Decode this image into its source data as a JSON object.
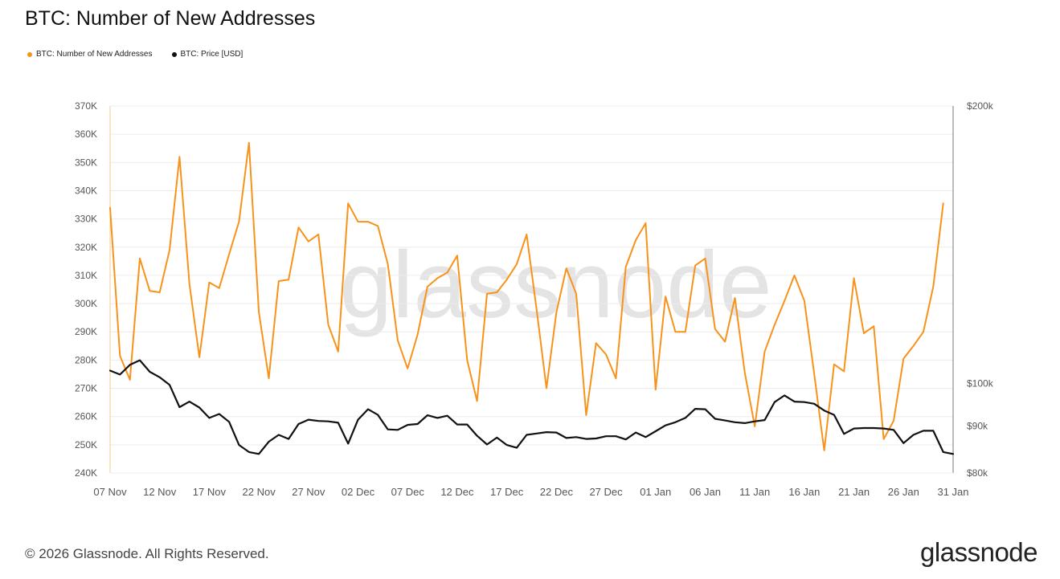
{
  "chart_data": {
    "type": "line",
    "title": "BTC: Number of New Addresses",
    "legend_placement": "top-left",
    "series": [
      {
        "name": "BTC: Number of New Addresses",
        "color": "#f7931a",
        "axis": "left",
        "values": [
          334000,
          281500,
          273000,
          316000,
          304500,
          304000,
          319000,
          352000,
          307000,
          281000,
          307500,
          305500,
          317500,
          329000,
          357000,
          297000,
          273500,
          308000,
          308500,
          327000,
          322000,
          324500,
          292500,
          283000,
          335500,
          329000,
          329000,
          327500,
          314000,
          287000,
          277000,
          289000,
          306000,
          309000,
          311000,
          317000,
          280000,
          265500,
          303500,
          304000,
          308500,
          314000,
          324500,
          298000,
          270000,
          297000,
          312500,
          303500,
          260500,
          286000,
          282000,
          273500,
          313000,
          322500,
          328500,
          269500,
          302500,
          290000,
          290000,
          313500,
          316000,
          291000,
          286500,
          302000,
          275500,
          256500,
          283000,
          292500,
          301000,
          310000,
          301000,
          275000,
          248000,
          278500,
          276000,
          309000,
          289500,
          292000,
          252000,
          258500,
          280500,
          285000,
          290000,
          306000,
          335500
        ]
      },
      {
        "name": "BTC: Price [USD]",
        "color": "#111111",
        "axis": "right",
        "values": [
          103300,
          102300,
          104800,
          106000,
          103000,
          101600,
          99700,
          94300,
          95600,
          94200,
          91800,
          92700,
          90900,
          85800,
          84300,
          83900,
          86500,
          88000,
          87100,
          90400,
          91400,
          91100,
          91000,
          90700,
          86100,
          91400,
          93800,
          92500,
          89200,
          89100,
          90200,
          90400,
          92400,
          91800,
          92300,
          90300,
          90300,
          87800,
          85900,
          87400,
          85800,
          85200,
          88000,
          88300,
          88600,
          88500,
          87300,
          87500,
          87100,
          87200,
          87700,
          87700,
          87000,
          88500,
          87500,
          88800,
          90100,
          90800,
          91800,
          93900,
          93800,
          91600,
          91200,
          90800,
          90600,
          91000,
          91300,
          95500,
          97100,
          95600,
          95500,
          95100,
          93500,
          92500,
          88200,
          89400,
          89500,
          89500,
          89400,
          89100,
          86200,
          88000,
          88900,
          88900,
          84300,
          83900
        ]
      }
    ],
    "x_tick_labels": [
      "07 Nov",
      "12 Nov",
      "17 Nov",
      "22 Nov",
      "27 Nov",
      "02 Dec",
      "07 Dec",
      "12 Dec",
      "17 Dec",
      "22 Dec",
      "27 Dec",
      "01 Jan",
      "06 Jan",
      "11 Jan",
      "16 Jan",
      "21 Jan",
      "26 Jan",
      "31 Jan"
    ],
    "x_range_days": [
      0,
      85
    ],
    "y_left": {
      "range": [
        240000,
        370000
      ],
      "step": 10000,
      "tick_labels": [
        "240K",
        "250K",
        "260K",
        "270K",
        "280K",
        "290K",
        "300K",
        "310K",
        "320K",
        "330K",
        "340K",
        "350K",
        "360K",
        "370K"
      ]
    },
    "y_right": {
      "scale": "log",
      "range": [
        80000,
        200000
      ],
      "ticks": [
        80000,
        90000,
        100000,
        200000
      ],
      "tick_labels": [
        "$80k",
        "$90k",
        "$100k",
        "$200k"
      ]
    },
    "grid": true,
    "watermark": "glassnode"
  },
  "footer": {
    "copyright": "© 2026 Glassnode. All Rights Reserved.",
    "brand": "glassnode"
  }
}
